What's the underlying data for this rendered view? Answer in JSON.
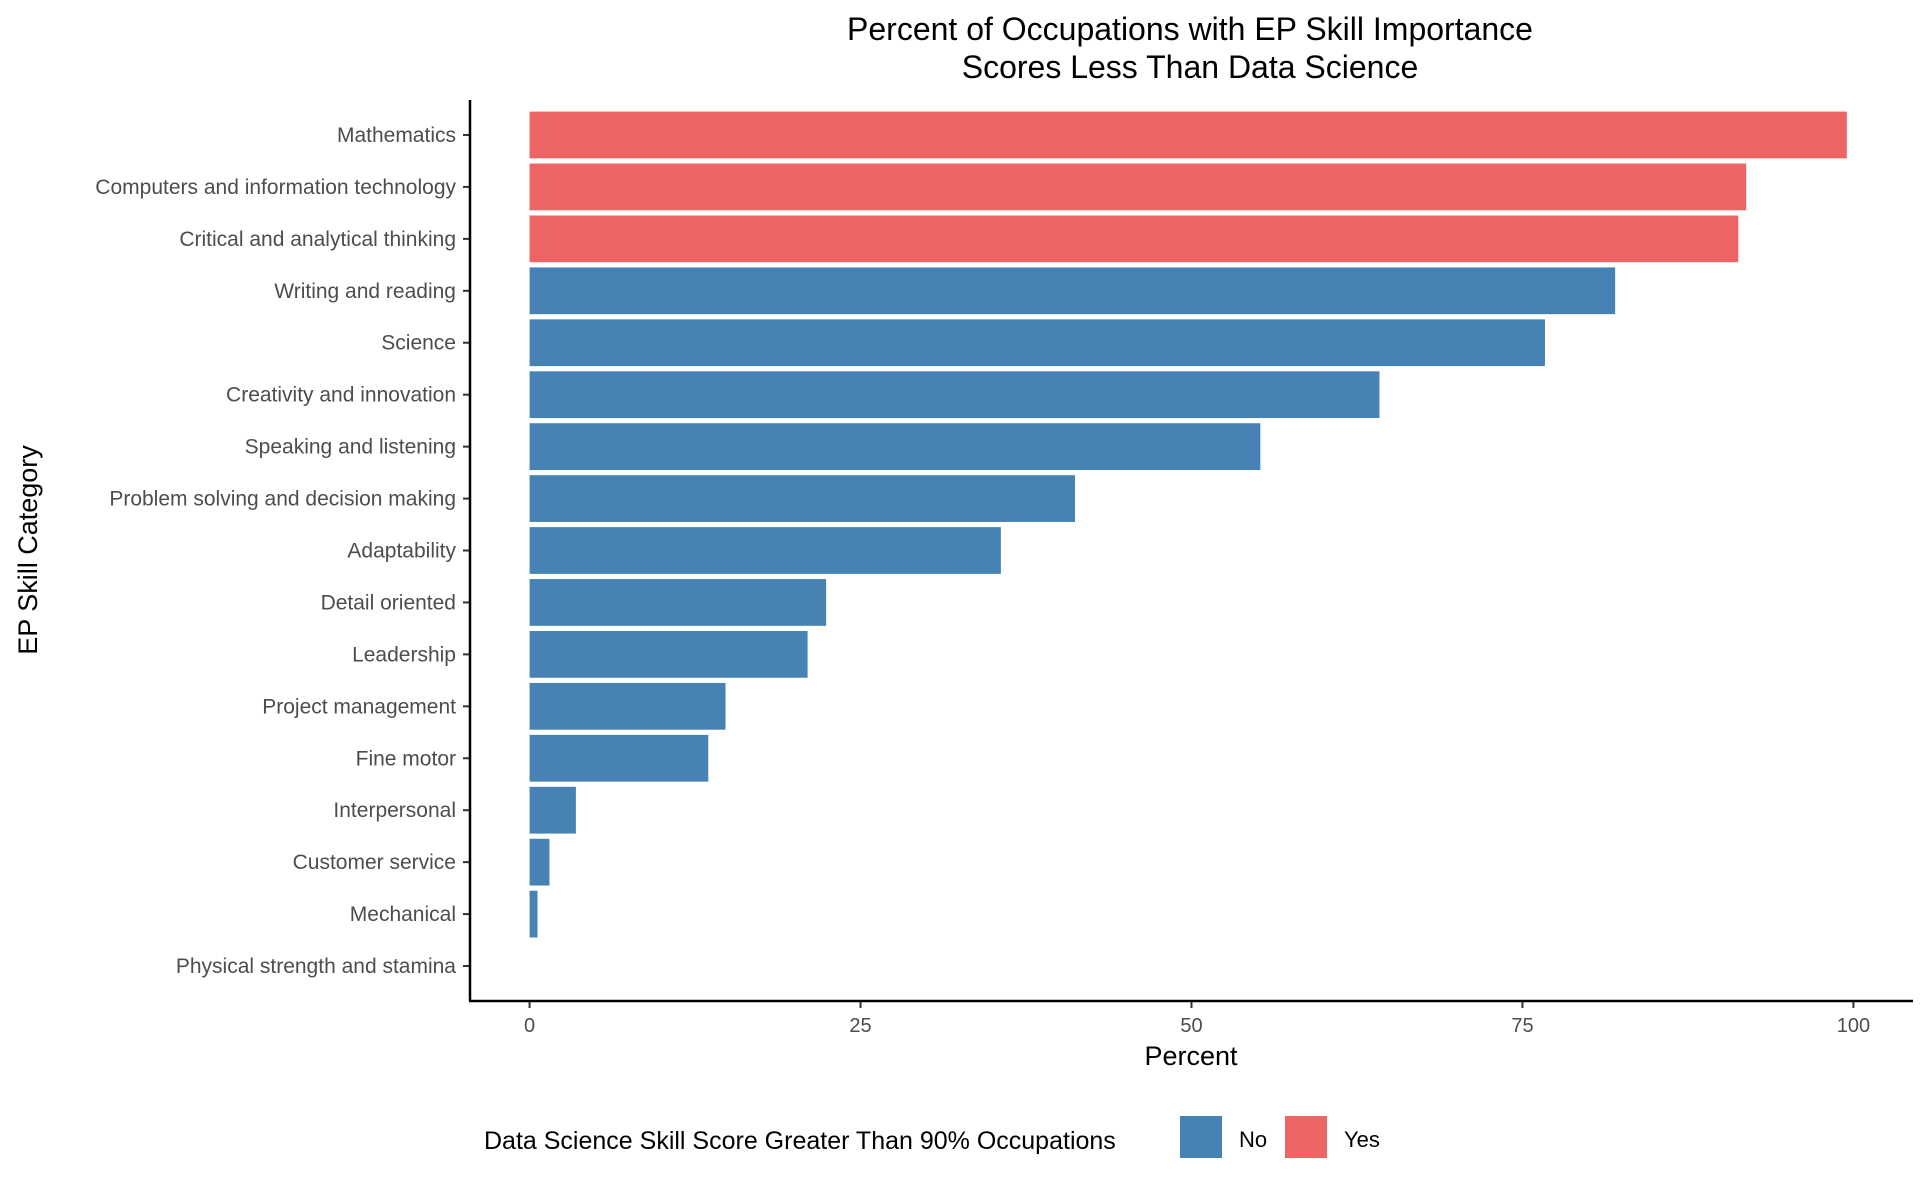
{
  "chart_data": {
    "type": "bar",
    "orientation": "horizontal",
    "title_lines": [
      "Percent of Occupations with EP Skill Importance",
      "Scores Less Than Data Science"
    ],
    "xlabel": "Percent",
    "ylabel": "EP Skill Category",
    "xlim": [
      -4.5,
      104.5
    ],
    "xticks": [
      0,
      25,
      50,
      75,
      100
    ],
    "grid": false,
    "categories": [
      "Mathematics",
      "Computers and information technology",
      "Critical and analytical thinking",
      "Writing and reading",
      "Science",
      "Creativity and innovation",
      "Speaking and listening",
      "Problem solving and decision making",
      "Adaptability",
      "Detail oriented",
      "Leadership",
      "Project management",
      "Fine motor",
      "Interpersonal",
      "Customer service",
      "Mechanical",
      "Physical strength and stamina"
    ],
    "values": [
      99.5,
      91.9,
      91.3,
      82.0,
      76.7,
      64.2,
      55.2,
      41.2,
      35.6,
      22.4,
      21.0,
      14.8,
      13.5,
      3.5,
      1.5,
      0.6,
      0.0
    ],
    "groups": [
      "Yes",
      "Yes",
      "Yes",
      "No",
      "No",
      "No",
      "No",
      "No",
      "No",
      "No",
      "No",
      "No",
      "No",
      "No",
      "No",
      "No",
      "No"
    ],
    "legend": {
      "title": "Data Science Skill Score Greater Than 90% Occupations",
      "position": "bottom",
      "items": [
        {
          "label": "No",
          "color": "#4682b4"
        },
        {
          "label": "Yes",
          "color": "#ee6363"
        }
      ]
    }
  }
}
